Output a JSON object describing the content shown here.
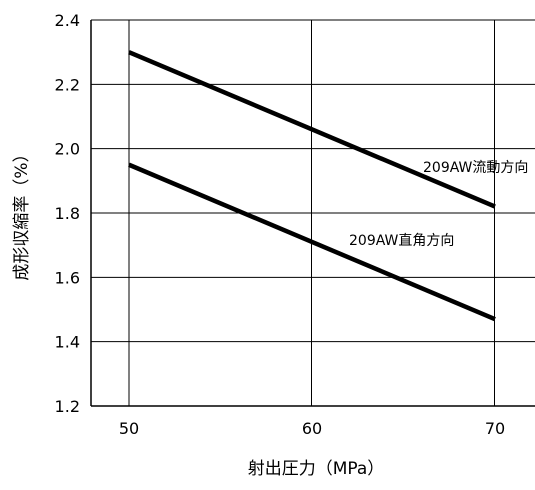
{
  "chart_data": {
    "type": "line",
    "xlabel": "射出圧力（MPa）",
    "ylabel": "成形収縮率（%）",
    "xlim": [
      50,
      70
    ],
    "ylim": [
      1.2,
      2.4
    ],
    "x_ticks": [
      "50",
      "60",
      "70"
    ],
    "y_ticks": [
      "1.2",
      "1.4",
      "1.6",
      "1.8",
      "2.0",
      "2.2",
      "2.4"
    ],
    "grid": true,
    "series": [
      {
        "name": "209AW流動方向",
        "x": [
          50,
          70
        ],
        "y": [
          2.3,
          1.82
        ]
      },
      {
        "name": "209AW直角方向",
        "x": [
          50,
          70
        ],
        "y": [
          1.95,
          1.47
        ]
      }
    ]
  }
}
